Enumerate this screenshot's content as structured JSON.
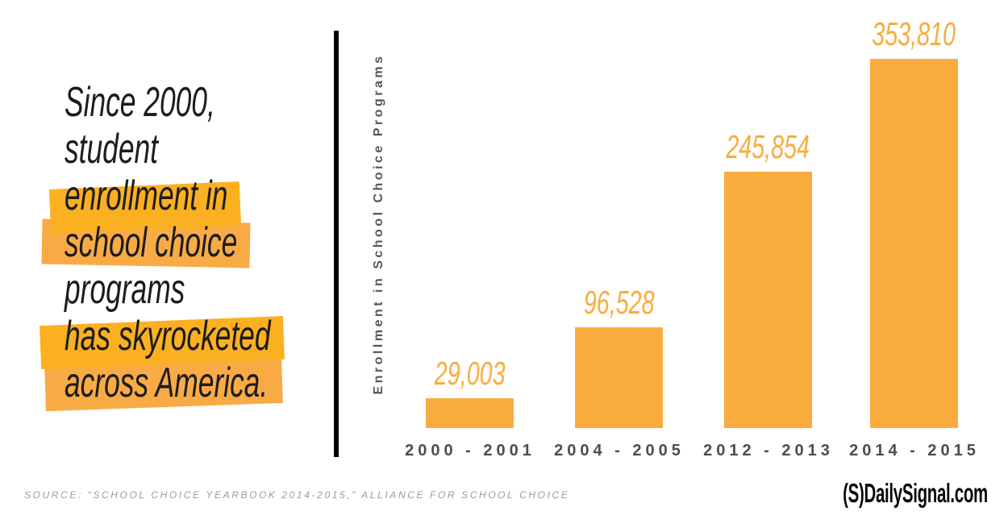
{
  "headline": {
    "lines": [
      {
        "text": "Since 2000,",
        "highlight": false
      },
      {
        "text": "student",
        "highlight": false
      },
      {
        "text": "enrollment in",
        "highlight": true
      },
      {
        "text": "school choice",
        "highlight": true
      },
      {
        "text": "programs",
        "highlight": false
      },
      {
        "text": "has skyrocketed",
        "highlight": true
      },
      {
        "text": "across America.",
        "highlight": true
      }
    ]
  },
  "chart_data": {
    "type": "bar",
    "categories": [
      "2000 - 2001",
      "2004 - 2005",
      "2012 - 2013",
      "2014 - 2015"
    ],
    "values": [
      29003,
      96528,
      245854,
      353810
    ],
    "value_labels": [
      "29,003",
      "96,528",
      "245,854",
      "353,810"
    ],
    "title": "",
    "xlabel": "",
    "ylabel": "Enrollment in School Choice Programs",
    "ylim": [
      0,
      353810
    ],
    "grid": false,
    "legend": false,
    "bar_color": "#F9AC3D",
    "value_label_color": "#F9AC3D"
  },
  "footer": {
    "source": "SOURCE: “SCHOOL CHOICE YEARBOOK 2014-2015,” ALLIANCE FOR SCHOOL CHOICE",
    "brand_mark": "(S)",
    "brand_name": "DailySignal.com"
  },
  "colors": {
    "highlight_bright": "#FBB022",
    "highlight_muted": "#F8AB45",
    "bar": "#F9AC3D",
    "divider": "#000000",
    "axis_text": "#4D4D4F",
    "source_text": "#9B9B9B"
  }
}
